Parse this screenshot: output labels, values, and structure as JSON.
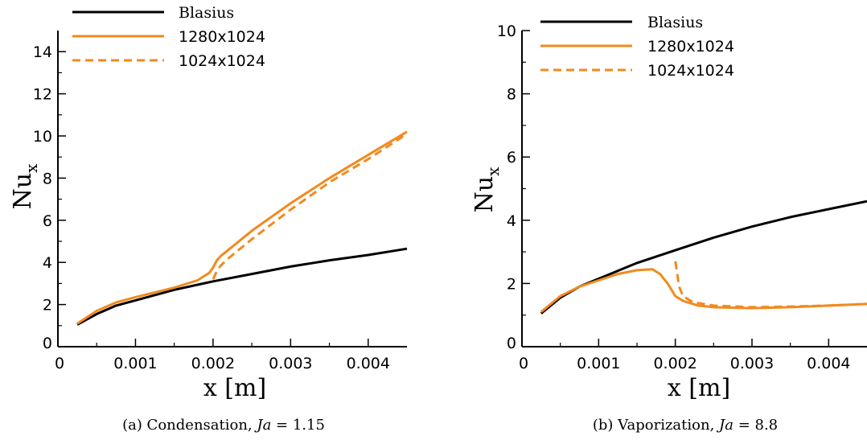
{
  "chart_data": [
    {
      "type": "line",
      "caption": {
        "prefix": "(a) Condensation, ",
        "var": "Ja",
        "suffix": " = 1.15"
      },
      "xlabel": "x  [m]",
      "ylabel": {
        "main": "Nu",
        "sub": "x"
      },
      "xlim": [
        0,
        0.0045
      ],
      "ylim": [
        0,
        15
      ],
      "xticks": [
        "0",
        "0.001",
        "0.002",
        "0.003",
        "0.004"
      ],
      "xtick_values": [
        0,
        0.001,
        0.002,
        0.003,
        0.004
      ],
      "yticks": [
        "0",
        "2",
        "4",
        "6",
        "8",
        "10",
        "12",
        "14"
      ],
      "ytick_values": [
        0,
        2,
        4,
        6,
        8,
        10,
        12,
        14
      ],
      "legend_position": "top-left",
      "series": [
        {
          "name": "Blasius",
          "color": "#000000",
          "dash": "solid",
          "x": [
            0.00025,
            0.0005,
            0.00075,
            0.001,
            0.0015,
            0.002,
            0.0025,
            0.003,
            0.0035,
            0.004,
            0.0045
          ],
          "y": [
            1.05,
            1.55,
            1.95,
            2.2,
            2.7,
            3.1,
            3.45,
            3.8,
            4.1,
            4.35,
            4.65
          ]
        },
        {
          "name": "1280x1024",
          "color": "#F28A1E",
          "dash": "solid",
          "x": [
            0.00025,
            0.0005,
            0.00075,
            0.001,
            0.0015,
            0.0018,
            0.00195,
            0.002,
            0.00205,
            0.0021,
            0.0025,
            0.003,
            0.0035,
            0.004,
            0.0045
          ],
          "y": [
            1.1,
            1.7,
            2.1,
            2.35,
            2.8,
            3.15,
            3.5,
            3.75,
            4.1,
            4.3,
            5.5,
            6.8,
            8.0,
            9.1,
            10.2
          ]
        },
        {
          "name": "1024x1024",
          "color": "#F28A1E",
          "dash": "dashed",
          "x": [
            0.002,
            0.00205,
            0.0021,
            0.0022,
            0.0025,
            0.003,
            0.0035,
            0.004,
            0.0045
          ],
          "y": [
            3.2,
            3.6,
            3.85,
            4.2,
            5.1,
            6.5,
            7.8,
            8.9,
            10.1
          ]
        }
      ]
    },
    {
      "type": "line",
      "caption": {
        "prefix": "(b) Vaporization, ",
        "var": "Ja",
        "suffix": " = 8.8"
      },
      "xlabel": "x  [m]",
      "ylabel": {
        "main": "Nu",
        "sub": "x"
      },
      "xlim": [
        0,
        0.0045
      ],
      "ylim": [
        0,
        10
      ],
      "xticks": [
        "0",
        "0.001",
        "0.002",
        "0.003",
        "0.004"
      ],
      "xtick_values": [
        0,
        0.001,
        0.002,
        0.003,
        0.004
      ],
      "yticks": [
        "0",
        "2",
        "4",
        "6",
        "8",
        "10"
      ],
      "ytick_values": [
        0,
        2,
        4,
        6,
        8,
        10
      ],
      "legend_position": "top-left",
      "series": [
        {
          "name": "Blasius",
          "color": "#000000",
          "dash": "solid",
          "x": [
            0.00025,
            0.0005,
            0.00075,
            0.001,
            0.0015,
            0.002,
            0.0025,
            0.003,
            0.0035,
            0.004,
            0.0045
          ],
          "y": [
            1.05,
            1.55,
            1.9,
            2.15,
            2.65,
            3.05,
            3.45,
            3.8,
            4.1,
            4.35,
            4.6
          ]
        },
        {
          "name": "1280x1024",
          "color": "#F28A1E",
          "dash": "solid",
          "x": [
            0.00025,
            0.0005,
            0.00075,
            0.001,
            0.00125,
            0.0015,
            0.0017,
            0.0018,
            0.0019,
            0.002,
            0.0021,
            0.0023,
            0.0025,
            0.003,
            0.0035,
            0.004,
            0.0045
          ],
          "y": [
            1.1,
            1.6,
            1.9,
            2.1,
            2.3,
            2.42,
            2.45,
            2.3,
            2.0,
            1.6,
            1.45,
            1.3,
            1.25,
            1.22,
            1.25,
            1.3,
            1.35
          ]
        },
        {
          "name": "1024x1024",
          "color": "#F28A1E",
          "dash": "dashed",
          "x": [
            0.002,
            0.00205,
            0.0021,
            0.0022,
            0.0023,
            0.0025,
            0.003,
            0.0035,
            0.004,
            0.0045
          ],
          "y": [
            2.7,
            1.9,
            1.6,
            1.45,
            1.38,
            1.3,
            1.25,
            1.27,
            1.3,
            1.35
          ]
        }
      ]
    }
  ]
}
